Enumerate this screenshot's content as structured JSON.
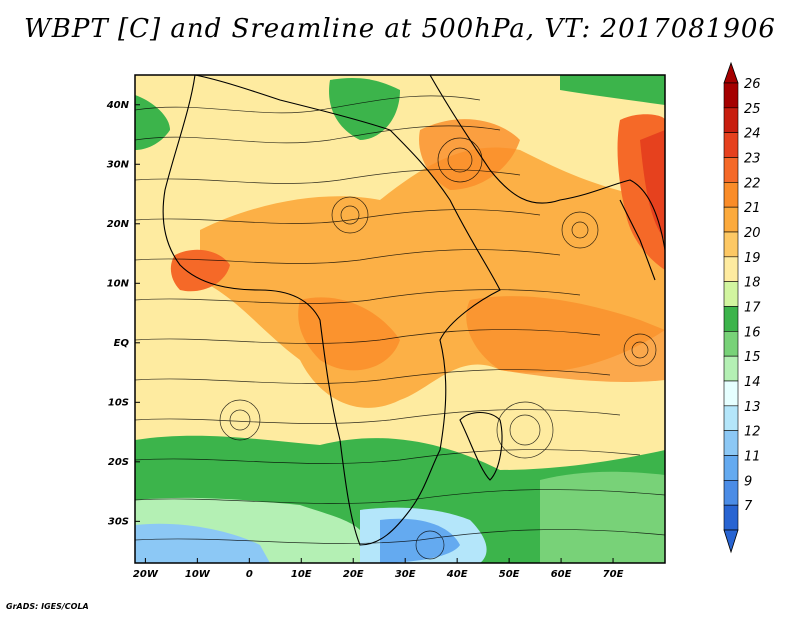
{
  "title": "WBPT [C] and Sreamline at 500hPa, VT: 2017081906",
  "credit": "GrADS: IGES/COLA",
  "map": {
    "lat_labels": [
      "40N",
      "30N",
      "20N",
      "10N",
      "EQ",
      "10S",
      "20S",
      "30S"
    ],
    "lat_values": [
      40,
      30,
      20,
      10,
      0,
      -10,
      -20,
      -30
    ],
    "lon_labels": [
      "20W",
      "10W",
      "0",
      "10E",
      "20E",
      "30E",
      "40E",
      "50E",
      "60E",
      "70E"
    ],
    "lon_values": [
      -20,
      -10,
      0,
      10,
      20,
      30,
      40,
      50,
      60,
      70
    ],
    "lon_range": [
      -22,
      80
    ],
    "lat_range": [
      -37,
      45
    ]
  },
  "colorbar": {
    "levels": [
      "26",
      "25",
      "24",
      "23",
      "22",
      "21",
      "20",
      "19",
      "18",
      "17",
      "16",
      "15",
      "14",
      "13",
      "12",
      "11",
      "9",
      "7"
    ],
    "colors": [
      "#a50000",
      "#c81e0f",
      "#e6411e",
      "#f56928",
      "#fa8c28",
      "#fcaa3c",
      "#fdc864",
      "#feeba0",
      "#d2f5a0",
      "#3cb44b",
      "#78d278",
      "#b4f0b4",
      "#e6ffff",
      "#b4e6fa",
      "#8cc8f5",
      "#64aaf0",
      "#4b8ce6",
      "#2864d2"
    ]
  }
}
